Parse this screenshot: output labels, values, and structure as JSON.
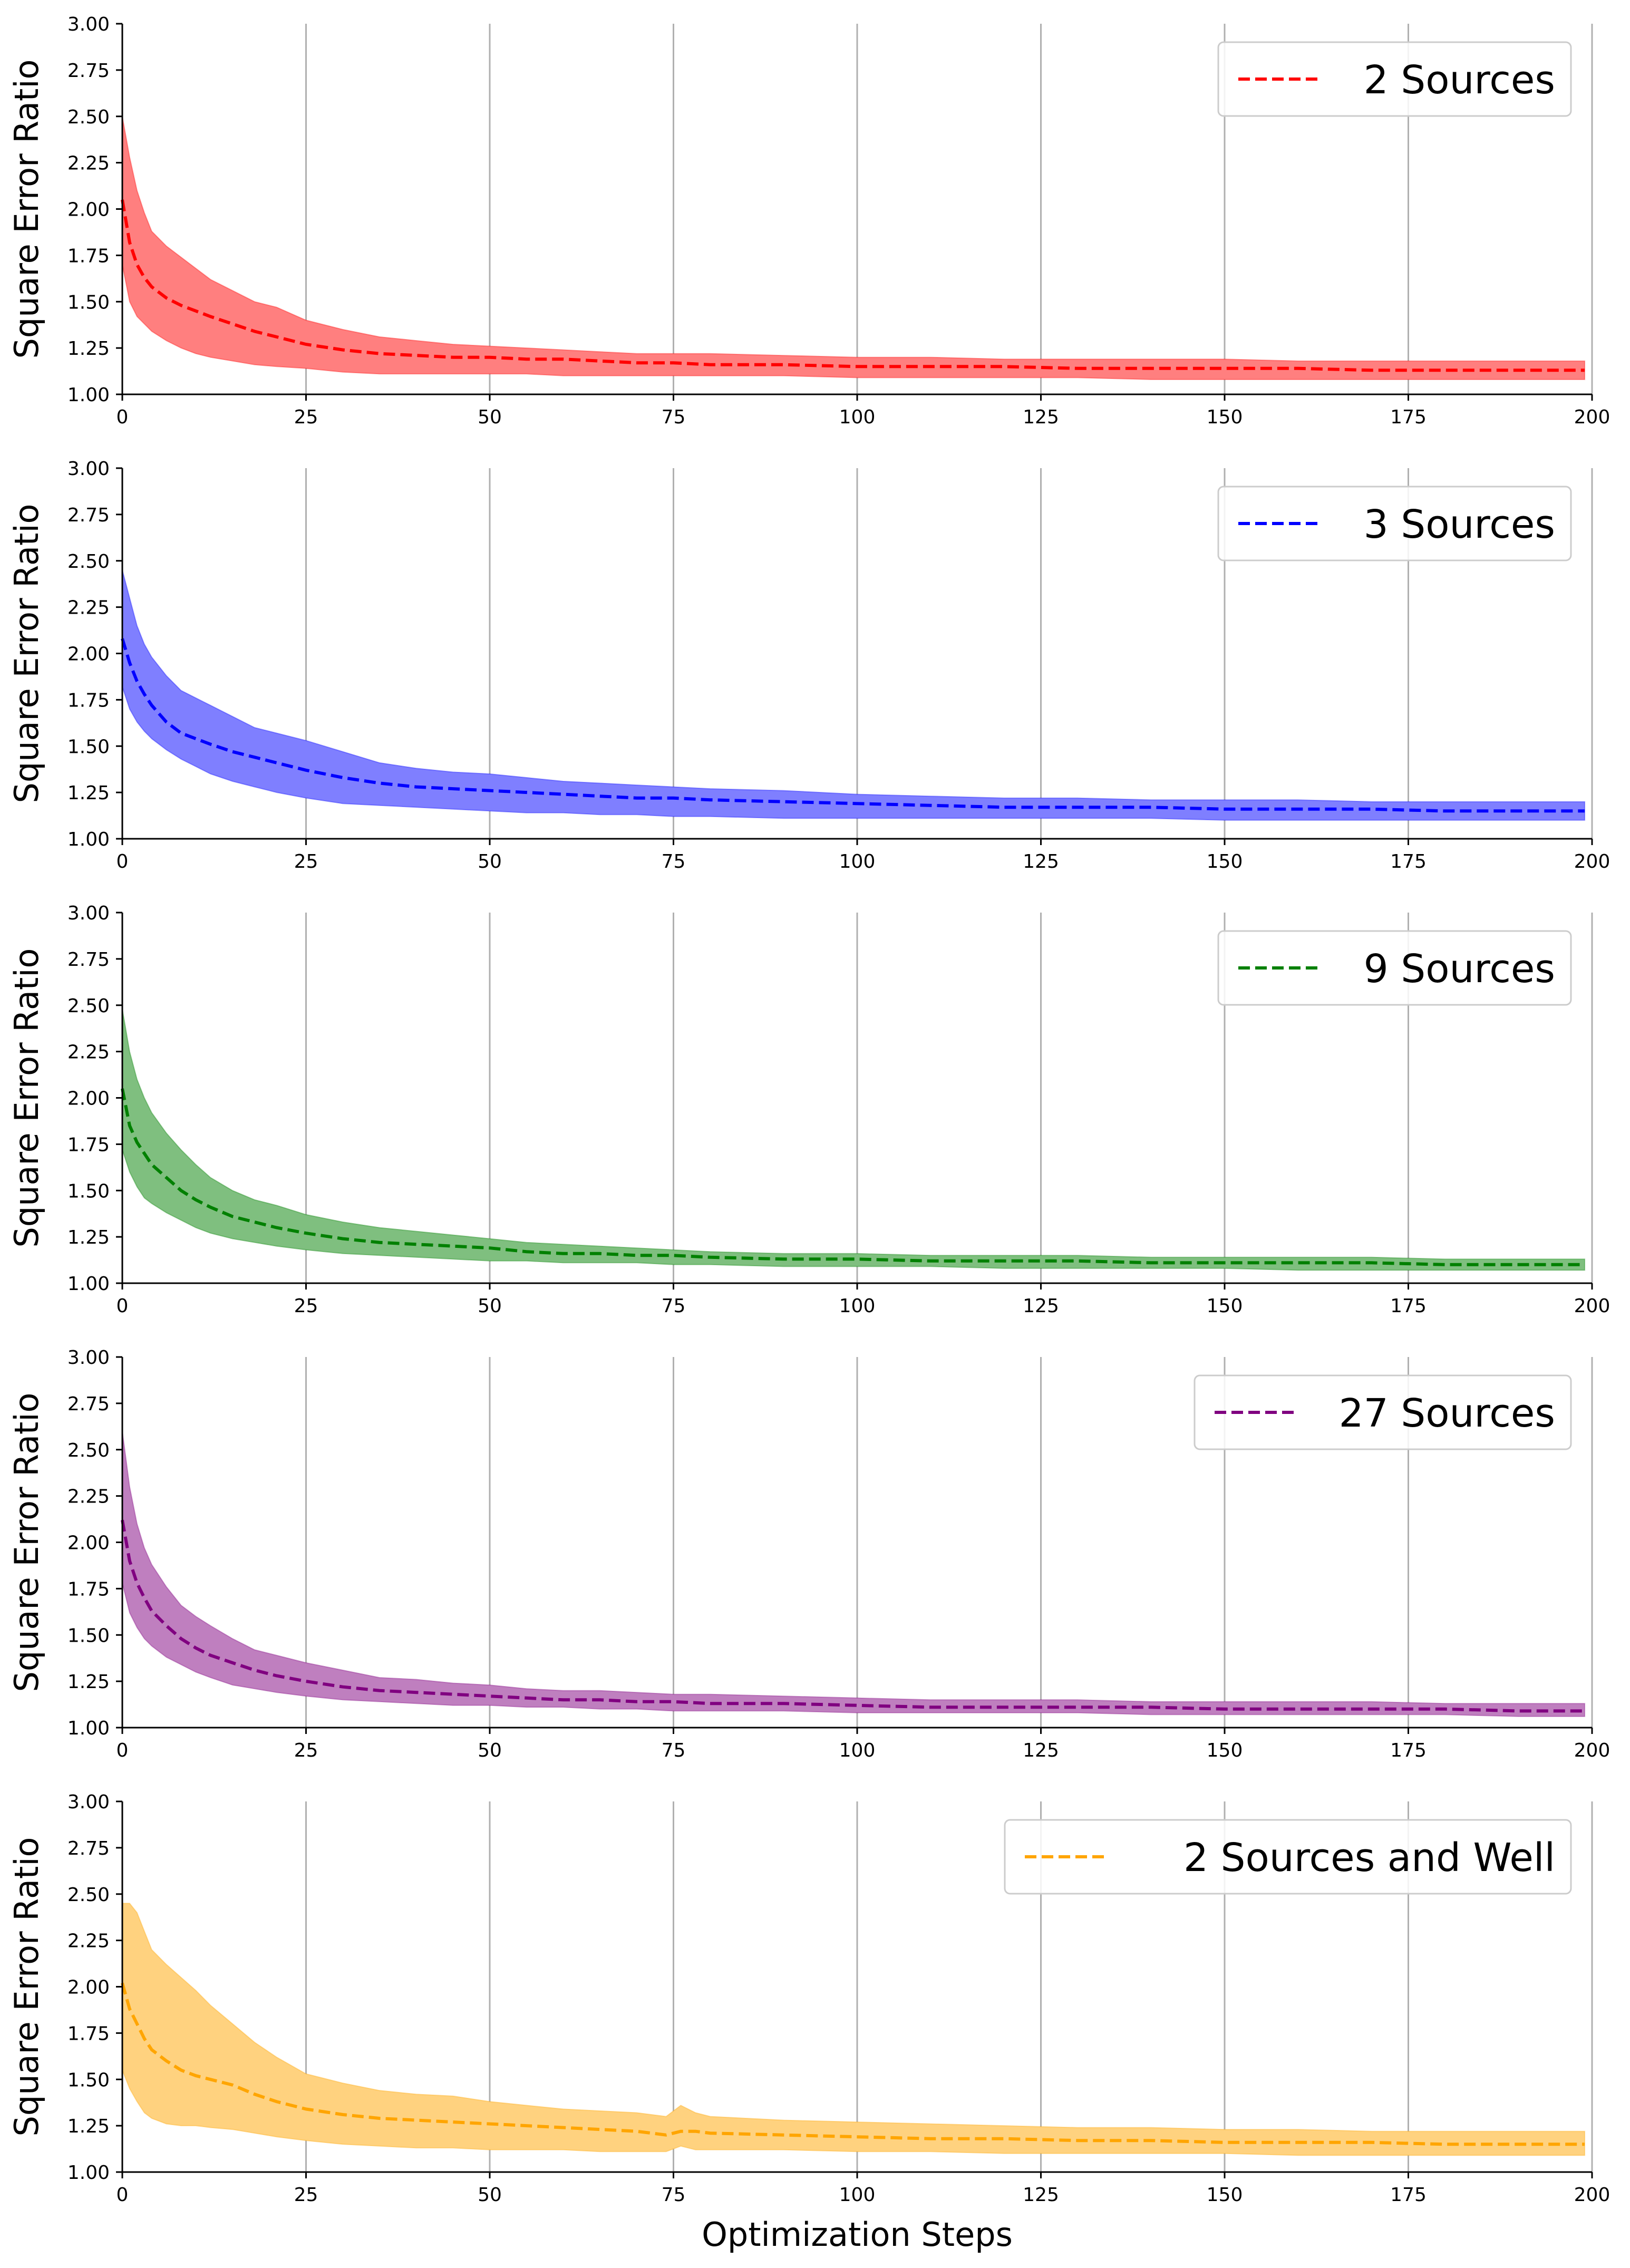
{
  "figure": {
    "xlabel": "Optimization Steps"
  },
  "chart_data": [
    {
      "type": "area",
      "title": "",
      "xlabel": "",
      "ylabel": "Square Error Ratio",
      "xlim": [
        0,
        200
      ],
      "ylim": [
        1.0,
        3.0
      ],
      "xticks": [
        "0",
        "25",
        "50",
        "75",
        "100",
        "125",
        "150",
        "175",
        "200"
      ],
      "yticks": [
        "1.00",
        "1.25",
        "1.50",
        "1.75",
        "2.00",
        "2.25",
        "2.50",
        "2.75",
        "3.00"
      ],
      "grid": "vertical",
      "legend_position": "top-right",
      "series": [
        {
          "name": "2 Sources",
          "color": "#ff0000",
          "band_color": "#ff7f7f",
          "x": [
            0,
            1,
            2,
            3,
            4,
            6,
            8,
            10,
            12,
            15,
            18,
            21,
            25,
            30,
            35,
            40,
            45,
            50,
            55,
            60,
            65,
            70,
            75,
            80,
            90,
            100,
            110,
            120,
            130,
            140,
            150,
            160,
            170,
            180,
            190,
            199
          ],
          "mean": [
            2.05,
            1.82,
            1.7,
            1.63,
            1.58,
            1.52,
            1.48,
            1.45,
            1.42,
            1.38,
            1.34,
            1.31,
            1.27,
            1.24,
            1.22,
            1.21,
            1.2,
            1.2,
            1.19,
            1.19,
            1.18,
            1.17,
            1.17,
            1.16,
            1.16,
            1.15,
            1.15,
            1.15,
            1.14,
            1.14,
            1.14,
            1.14,
            1.13,
            1.13,
            1.13,
            1.13
          ],
          "upper": [
            2.5,
            2.28,
            2.1,
            1.98,
            1.88,
            1.8,
            1.74,
            1.68,
            1.62,
            1.56,
            1.5,
            1.47,
            1.4,
            1.35,
            1.31,
            1.29,
            1.27,
            1.26,
            1.25,
            1.24,
            1.23,
            1.22,
            1.22,
            1.22,
            1.21,
            1.2,
            1.2,
            1.19,
            1.19,
            1.19,
            1.19,
            1.18,
            1.18,
            1.18,
            1.18,
            1.18
          ],
          "lower": [
            1.7,
            1.5,
            1.42,
            1.38,
            1.34,
            1.29,
            1.25,
            1.22,
            1.2,
            1.18,
            1.16,
            1.15,
            1.14,
            1.12,
            1.11,
            1.11,
            1.11,
            1.11,
            1.11,
            1.1,
            1.1,
            1.1,
            1.1,
            1.1,
            1.1,
            1.09,
            1.09,
            1.09,
            1.09,
            1.08,
            1.08,
            1.08,
            1.08,
            1.08,
            1.08,
            1.08
          ]
        }
      ]
    },
    {
      "type": "area",
      "title": "",
      "xlabel": "",
      "ylabel": "Square Error Ratio",
      "xlim": [
        0,
        200
      ],
      "ylim": [
        1.0,
        3.0
      ],
      "xticks": [
        "0",
        "25",
        "50",
        "75",
        "100",
        "125",
        "150",
        "175",
        "200"
      ],
      "yticks": [
        "1.00",
        "1.25",
        "1.50",
        "1.75",
        "2.00",
        "2.25",
        "2.50",
        "2.75",
        "3.00"
      ],
      "grid": "vertical",
      "legend_position": "top-right",
      "series": [
        {
          "name": "3 Sources",
          "color": "#0000ff",
          "band_color": "#7f7fff",
          "x": [
            0,
            1,
            2,
            3,
            4,
            6,
            8,
            10,
            12,
            15,
            18,
            21,
            25,
            30,
            35,
            40,
            45,
            50,
            55,
            60,
            65,
            70,
            75,
            80,
            90,
            100,
            110,
            120,
            130,
            140,
            150,
            160,
            170,
            180,
            190,
            199
          ],
          "mean": [
            2.08,
            1.95,
            1.85,
            1.78,
            1.72,
            1.63,
            1.57,
            1.54,
            1.51,
            1.47,
            1.44,
            1.41,
            1.37,
            1.33,
            1.3,
            1.28,
            1.27,
            1.26,
            1.25,
            1.24,
            1.23,
            1.22,
            1.22,
            1.21,
            1.2,
            1.19,
            1.18,
            1.17,
            1.17,
            1.17,
            1.16,
            1.16,
            1.16,
            1.15,
            1.15,
            1.15
          ],
          "upper": [
            2.45,
            2.3,
            2.15,
            2.05,
            1.98,
            1.88,
            1.8,
            1.76,
            1.72,
            1.66,
            1.6,
            1.57,
            1.53,
            1.47,
            1.41,
            1.38,
            1.36,
            1.35,
            1.33,
            1.31,
            1.3,
            1.29,
            1.28,
            1.27,
            1.26,
            1.24,
            1.23,
            1.22,
            1.22,
            1.21,
            1.21,
            1.21,
            1.2,
            1.2,
            1.2,
            1.2
          ],
          "lower": [
            1.82,
            1.7,
            1.63,
            1.58,
            1.54,
            1.48,
            1.43,
            1.39,
            1.35,
            1.31,
            1.28,
            1.25,
            1.22,
            1.19,
            1.18,
            1.17,
            1.16,
            1.15,
            1.14,
            1.14,
            1.13,
            1.13,
            1.12,
            1.12,
            1.11,
            1.11,
            1.11,
            1.11,
            1.11,
            1.11,
            1.1,
            1.1,
            1.1,
            1.1,
            1.1,
            1.1
          ]
        }
      ]
    },
    {
      "type": "area",
      "title": "",
      "xlabel": "",
      "ylabel": "Square Error Ratio",
      "xlim": [
        0,
        200
      ],
      "ylim": [
        1.0,
        3.0
      ],
      "xticks": [
        "0",
        "25",
        "50",
        "75",
        "100",
        "125",
        "150",
        "175",
        "200"
      ],
      "yticks": [
        "1.00",
        "1.25",
        "1.50",
        "1.75",
        "2.00",
        "2.25",
        "2.50",
        "2.75",
        "3.00"
      ],
      "grid": "vertical",
      "legend_position": "top-right",
      "series": [
        {
          "name": "9 Sources",
          "color": "#008000",
          "band_color": "#7fbf7f",
          "x": [
            0,
            1,
            2,
            3,
            4,
            6,
            8,
            10,
            12,
            15,
            18,
            21,
            25,
            30,
            35,
            40,
            45,
            50,
            55,
            60,
            65,
            70,
            75,
            80,
            90,
            100,
            110,
            120,
            130,
            140,
            150,
            160,
            170,
            180,
            190,
            199
          ],
          "mean": [
            2.05,
            1.85,
            1.76,
            1.7,
            1.64,
            1.57,
            1.5,
            1.45,
            1.41,
            1.36,
            1.33,
            1.3,
            1.27,
            1.24,
            1.22,
            1.21,
            1.2,
            1.19,
            1.17,
            1.16,
            1.16,
            1.15,
            1.15,
            1.14,
            1.13,
            1.13,
            1.12,
            1.12,
            1.12,
            1.11,
            1.11,
            1.11,
            1.11,
            1.1,
            1.1,
            1.1
          ],
          "upper": [
            2.48,
            2.25,
            2.1,
            2.0,
            1.92,
            1.81,
            1.72,
            1.64,
            1.57,
            1.5,
            1.45,
            1.42,
            1.37,
            1.33,
            1.3,
            1.28,
            1.26,
            1.24,
            1.22,
            1.21,
            1.2,
            1.19,
            1.18,
            1.17,
            1.16,
            1.16,
            1.15,
            1.15,
            1.15,
            1.14,
            1.14,
            1.14,
            1.14,
            1.13,
            1.13,
            1.13
          ],
          "lower": [
            1.72,
            1.6,
            1.52,
            1.46,
            1.43,
            1.38,
            1.34,
            1.3,
            1.27,
            1.24,
            1.22,
            1.2,
            1.18,
            1.16,
            1.15,
            1.14,
            1.13,
            1.12,
            1.12,
            1.11,
            1.11,
            1.11,
            1.1,
            1.1,
            1.09,
            1.09,
            1.09,
            1.08,
            1.08,
            1.08,
            1.08,
            1.07,
            1.07,
            1.07,
            1.07,
            1.07
          ]
        }
      ]
    },
    {
      "type": "area",
      "title": "",
      "xlabel": "",
      "ylabel": "Square Error Ratio",
      "xlim": [
        0,
        200
      ],
      "ylim": [
        1.0,
        3.0
      ],
      "xticks": [
        "0",
        "25",
        "50",
        "75",
        "100",
        "125",
        "150",
        "175",
        "200"
      ],
      "yticks": [
        "1.00",
        "1.25",
        "1.50",
        "1.75",
        "2.00",
        "2.25",
        "2.50",
        "2.75",
        "3.00"
      ],
      "grid": "vertical",
      "legend_position": "top-right",
      "series": [
        {
          "name": "27 Sources",
          "color": "#800080",
          "band_color": "#bf7fbf",
          "x": [
            0,
            1,
            2,
            3,
            4,
            6,
            8,
            10,
            12,
            15,
            18,
            21,
            25,
            30,
            35,
            40,
            45,
            50,
            55,
            60,
            65,
            70,
            75,
            80,
            90,
            100,
            110,
            120,
            130,
            140,
            150,
            160,
            170,
            180,
            190,
            199
          ],
          "mean": [
            2.12,
            1.9,
            1.78,
            1.7,
            1.63,
            1.55,
            1.48,
            1.43,
            1.39,
            1.35,
            1.31,
            1.28,
            1.25,
            1.22,
            1.2,
            1.19,
            1.18,
            1.17,
            1.16,
            1.15,
            1.15,
            1.14,
            1.14,
            1.13,
            1.13,
            1.12,
            1.11,
            1.11,
            1.11,
            1.11,
            1.1,
            1.1,
            1.1,
            1.1,
            1.09,
            1.09
          ],
          "upper": [
            2.6,
            2.3,
            2.1,
            1.97,
            1.88,
            1.76,
            1.66,
            1.6,
            1.55,
            1.48,
            1.42,
            1.39,
            1.35,
            1.31,
            1.27,
            1.26,
            1.24,
            1.23,
            1.21,
            1.2,
            1.2,
            1.19,
            1.18,
            1.18,
            1.17,
            1.16,
            1.15,
            1.15,
            1.15,
            1.14,
            1.14,
            1.14,
            1.14,
            1.13,
            1.13,
            1.13
          ],
          "lower": [
            1.78,
            1.62,
            1.54,
            1.48,
            1.44,
            1.38,
            1.34,
            1.3,
            1.27,
            1.23,
            1.21,
            1.19,
            1.17,
            1.15,
            1.14,
            1.13,
            1.12,
            1.12,
            1.11,
            1.11,
            1.1,
            1.1,
            1.09,
            1.09,
            1.09,
            1.08,
            1.08,
            1.08,
            1.08,
            1.07,
            1.07,
            1.07,
            1.07,
            1.07,
            1.06,
            1.06
          ]
        }
      ]
    },
    {
      "type": "area",
      "title": "",
      "xlabel": "Optimization Steps",
      "ylabel": "Square Error Ratio",
      "xlim": [
        0,
        200
      ],
      "ylim": [
        1.0,
        3.0
      ],
      "xticks": [
        "0",
        "25",
        "50",
        "75",
        "100",
        "125",
        "150",
        "175",
        "200"
      ],
      "yticks": [
        "1.00",
        "1.25",
        "1.50",
        "1.75",
        "2.00",
        "2.25",
        "2.50",
        "2.75",
        "3.00"
      ],
      "grid": "vertical",
      "legend_position": "top-right",
      "series": [
        {
          "name": "2 Sources and Well",
          "color": "#ffa500",
          "band_color": "#ffd27f",
          "x": [
            0,
            1,
            2,
            3,
            4,
            6,
            8,
            10,
            12,
            15,
            18,
            21,
            25,
            30,
            35,
            40,
            45,
            50,
            55,
            60,
            65,
            70,
            74,
            76,
            78,
            80,
            90,
            100,
            110,
            120,
            130,
            140,
            150,
            160,
            170,
            180,
            190,
            199
          ],
          "mean": [
            2.02,
            1.88,
            1.8,
            1.72,
            1.66,
            1.6,
            1.55,
            1.52,
            1.5,
            1.47,
            1.42,
            1.38,
            1.34,
            1.31,
            1.29,
            1.28,
            1.27,
            1.26,
            1.25,
            1.24,
            1.23,
            1.22,
            1.2,
            1.22,
            1.22,
            1.21,
            1.2,
            1.19,
            1.18,
            1.18,
            1.17,
            1.17,
            1.16,
            1.16,
            1.16,
            1.15,
            1.15,
            1.15
          ],
          "upper": [
            2.45,
            2.45,
            2.4,
            2.3,
            2.2,
            2.12,
            2.05,
            1.98,
            1.9,
            1.8,
            1.7,
            1.62,
            1.53,
            1.48,
            1.44,
            1.42,
            1.41,
            1.38,
            1.36,
            1.34,
            1.33,
            1.32,
            1.3,
            1.36,
            1.32,
            1.3,
            1.28,
            1.27,
            1.26,
            1.25,
            1.24,
            1.24,
            1.23,
            1.23,
            1.22,
            1.22,
            1.22,
            1.22
          ],
          "lower": [
            1.55,
            1.45,
            1.38,
            1.32,
            1.29,
            1.26,
            1.25,
            1.25,
            1.24,
            1.23,
            1.21,
            1.19,
            1.17,
            1.15,
            1.14,
            1.13,
            1.13,
            1.12,
            1.12,
            1.12,
            1.11,
            1.11,
            1.11,
            1.14,
            1.12,
            1.12,
            1.12,
            1.11,
            1.11,
            1.1,
            1.1,
            1.1,
            1.1,
            1.09,
            1.09,
            1.09,
            1.09,
            1.09
          ]
        }
      ]
    }
  ]
}
